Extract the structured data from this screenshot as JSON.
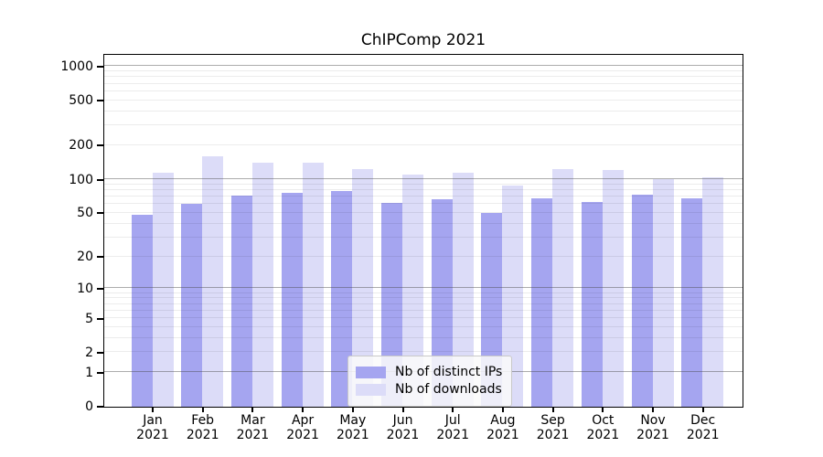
{
  "chart_data": {
    "type": "bar",
    "title": "ChIPComp 2021",
    "categories": [
      "Jan 2021",
      "Feb 2021",
      "Mar 2021",
      "Apr 2021",
      "May 2021",
      "Jun 2021",
      "Jul 2021",
      "Aug 2021",
      "Sep 2021",
      "Oct 2021",
      "Nov 2021",
      "Dec 2021"
    ],
    "series": [
      {
        "name": "Nb of distinct IPs",
        "color": "#a5a5f0",
        "values": [
          48,
          60,
          71,
          75,
          78,
          61,
          66,
          50,
          67,
          63,
          72,
          67
        ]
      },
      {
        "name": "Nb of downloads",
        "color": "#dcdcf8",
        "values": [
          115,
          159,
          139,
          141,
          124,
          110,
          113,
          88,
          124,
          120,
          100,
          104
        ]
      }
    ],
    "yscale": "symlog",
    "y_ticks": [
      0,
      1,
      2,
      5,
      10,
      20,
      50,
      100,
      200,
      500,
      1000
    ],
    "y_major_gridlines": [
      1,
      10,
      100,
      1000
    ],
    "ylim": [
      0,
      1270
    ],
    "xlabel": "",
    "ylabel": "",
    "grid": "both",
    "legend_position": "inside-bottom-center",
    "background_color": "#ffffff",
    "axis_color": "#000000"
  }
}
